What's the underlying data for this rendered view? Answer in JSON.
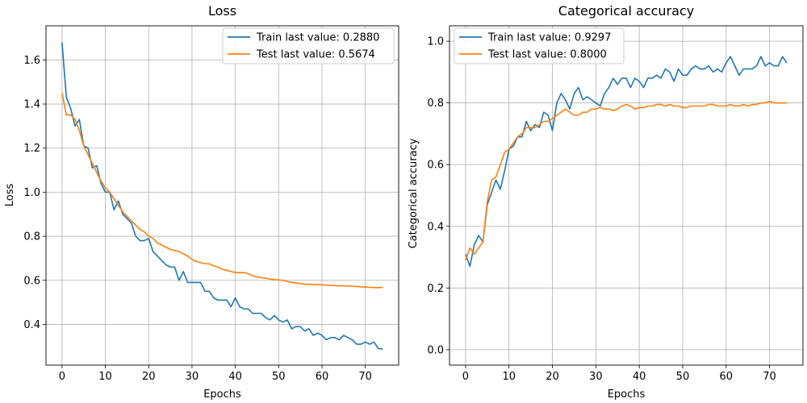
{
  "colors": {
    "train": "#1f77b4",
    "test": "#ff7f0e",
    "grid": "#b0b0b0",
    "frame": "#000000"
  },
  "chart_data": [
    {
      "type": "line",
      "title": "Loss",
      "xlabel": "Epochs",
      "ylabel": "Loss",
      "xlim": [
        -3.7,
        77.7
      ],
      "ylim": [
        0.215,
        1.755
      ],
      "xticks": [
        "0",
        "10",
        "20",
        "30",
        "40",
        "50",
        "60",
        "70"
      ],
      "yticks": [
        "0.4",
        "0.6",
        "0.8",
        "1.0",
        "1.2",
        "1.4",
        "1.6"
      ],
      "grid": true,
      "legend_position": "top-right",
      "series": [
        {
          "name": "Train last value: 0.2880",
          "values": [
            1.68,
            1.43,
            1.38,
            1.3,
            1.33,
            1.21,
            1.2,
            1.11,
            1.12,
            1.04,
            1.0,
            1.0,
            0.92,
            0.96,
            0.9,
            0.88,
            0.86,
            0.8,
            0.78,
            0.78,
            0.79,
            0.73,
            0.71,
            0.69,
            0.67,
            0.66,
            0.66,
            0.6,
            0.64,
            0.59,
            0.59,
            0.59,
            0.59,
            0.55,
            0.55,
            0.52,
            0.51,
            0.51,
            0.51,
            0.48,
            0.52,
            0.48,
            0.47,
            0.47,
            0.45,
            0.45,
            0.45,
            0.43,
            0.42,
            0.44,
            0.42,
            0.41,
            0.42,
            0.38,
            0.39,
            0.39,
            0.37,
            0.38,
            0.35,
            0.36,
            0.35,
            0.33,
            0.34,
            0.34,
            0.33,
            0.35,
            0.34,
            0.33,
            0.31,
            0.31,
            0.32,
            0.31,
            0.32,
            0.29,
            0.288
          ]
        },
        {
          "name": "Test last value: 0.5674",
          "values": [
            1.45,
            1.35,
            1.35,
            1.33,
            1.28,
            1.21,
            1.17,
            1.13,
            1.09,
            1.05,
            1.02,
            1.0,
            0.97,
            0.94,
            0.91,
            0.89,
            0.87,
            0.85,
            0.83,
            0.82,
            0.8,
            0.79,
            0.77,
            0.76,
            0.75,
            0.74,
            0.735,
            0.73,
            0.72,
            0.71,
            0.695,
            0.685,
            0.68,
            0.675,
            0.675,
            0.665,
            0.66,
            0.65,
            0.645,
            0.64,
            0.635,
            0.635,
            0.635,
            0.63,
            0.62,
            0.615,
            0.612,
            0.61,
            0.605,
            0.603,
            0.602,
            0.6,
            0.595,
            0.59,
            0.588,
            0.585,
            0.583,
            0.582,
            0.581,
            0.58,
            0.579,
            0.578,
            0.577,
            0.576,
            0.575,
            0.575,
            0.574,
            0.573,
            0.572,
            0.57,
            0.569,
            0.568,
            0.567,
            0.567,
            0.5674
          ]
        }
      ]
    },
    {
      "type": "line",
      "title": "Categorical accuracy",
      "xlabel": "Epochs",
      "ylabel": "Categorical accuracy",
      "xlim": [
        -3.7,
        77.7
      ],
      "ylim": [
        -0.05,
        1.05
      ],
      "xticks": [
        "0",
        "10",
        "20",
        "30",
        "40",
        "50",
        "60",
        "70"
      ],
      "yticks": [
        "0.0",
        "0.2",
        "0.4",
        "0.6",
        "0.8",
        "1.0"
      ],
      "grid": true,
      "legend_position": "top-left",
      "series": [
        {
          "name": "Train last value: 0.9297",
          "values": [
            0.31,
            0.27,
            0.34,
            0.37,
            0.35,
            0.47,
            0.51,
            0.55,
            0.52,
            0.58,
            0.65,
            0.66,
            0.69,
            0.69,
            0.74,
            0.71,
            0.73,
            0.72,
            0.77,
            0.76,
            0.71,
            0.8,
            0.83,
            0.81,
            0.78,
            0.83,
            0.85,
            0.81,
            0.82,
            0.81,
            0.8,
            0.79,
            0.83,
            0.85,
            0.88,
            0.86,
            0.88,
            0.88,
            0.85,
            0.88,
            0.87,
            0.85,
            0.88,
            0.88,
            0.89,
            0.88,
            0.91,
            0.9,
            0.87,
            0.91,
            0.89,
            0.89,
            0.91,
            0.92,
            0.91,
            0.91,
            0.92,
            0.9,
            0.91,
            0.9,
            0.93,
            0.95,
            0.92,
            0.89,
            0.91,
            0.91,
            0.91,
            0.92,
            0.95,
            0.92,
            0.93,
            0.92,
            0.92,
            0.95,
            0.9297
          ]
        },
        {
          "name": "Test last value: 0.8000",
          "values": [
            0.29,
            0.33,
            0.31,
            0.33,
            0.35,
            0.48,
            0.55,
            0.56,
            0.6,
            0.64,
            0.65,
            0.67,
            0.69,
            0.7,
            0.72,
            0.72,
            0.72,
            0.73,
            0.74,
            0.74,
            0.75,
            0.76,
            0.77,
            0.78,
            0.77,
            0.76,
            0.76,
            0.77,
            0.77,
            0.78,
            0.78,
            0.785,
            0.78,
            0.78,
            0.775,
            0.78,
            0.79,
            0.795,
            0.79,
            0.78,
            0.785,
            0.785,
            0.79,
            0.79,
            0.795,
            0.795,
            0.79,
            0.795,
            0.79,
            0.79,
            0.785,
            0.785,
            0.79,
            0.79,
            0.79,
            0.79,
            0.795,
            0.795,
            0.79,
            0.79,
            0.79,
            0.795,
            0.79,
            0.79,
            0.795,
            0.79,
            0.795,
            0.795,
            0.8,
            0.8,
            0.805,
            0.8,
            0.8,
            0.8,
            0.8
          ]
        }
      ]
    }
  ]
}
